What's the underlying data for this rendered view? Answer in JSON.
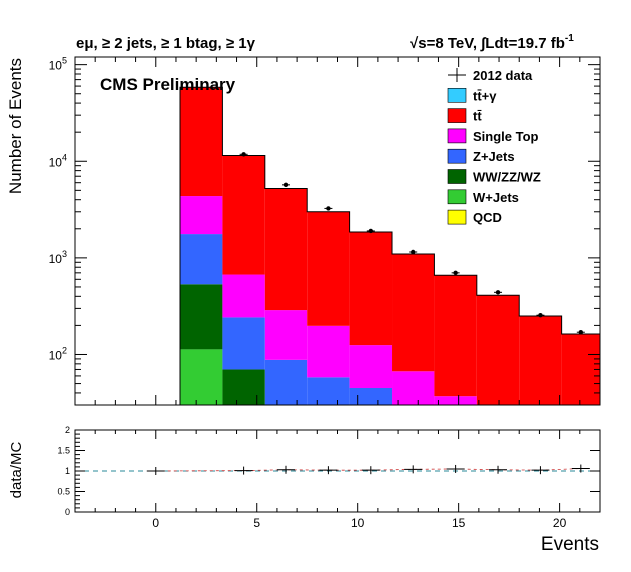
{
  "chart_data": [
    {
      "type": "bar",
      "stacked": true,
      "log_y": true,
      "title_left": "eμ, ≥ 2 jets, ≥ 1 btag, ≥ 1γ",
      "title_right": "√s=8 TeV, ∫Ldt=19.7 fb",
      "title_right_sup": "-1",
      "watermark": "CMS Preliminary",
      "ylabel": "Number of Events",
      "ylim": [
        30,
        120000
      ],
      "y_ticks": [
        {
          "value": 100,
          "base": "10",
          "exp": "2"
        },
        {
          "value": 1000,
          "base": "10",
          "exp": "3"
        },
        {
          "value": 10000,
          "base": "10",
          "exp": "4"
        },
        {
          "value": 100000,
          "base": "10",
          "exp": "5"
        }
      ],
      "xlim": [
        -4,
        22
      ],
      "bins": [
        [
          1.2,
          3.3
        ],
        [
          3.3,
          5.4
        ],
        [
          5.4,
          7.5
        ],
        [
          7.5,
          9.6
        ],
        [
          9.6,
          11.7
        ],
        [
          11.7,
          13.8
        ],
        [
          13.8,
          15.9
        ],
        [
          15.9,
          18.0
        ],
        [
          18.0,
          20.1
        ],
        [
          20.1,
          22.0
        ]
      ],
      "series": [
        {
          "name": "W+Jets",
          "color": "#33cc33",
          "values": [
            113,
            0,
            0,
            0,
            0,
            0,
            0,
            0,
            0,
            0
          ]
        },
        {
          "name": "WW/ZZ/WZ",
          "color": "#006400",
          "values": [
            420,
            70,
            0,
            0,
            0,
            0,
            0,
            0,
            0,
            0
          ]
        },
        {
          "name": "Z+Jets",
          "color": "#3366ff",
          "values": [
            1230,
            172,
            88,
            58,
            45,
            0,
            0,
            0,
            0,
            0
          ]
        },
        {
          "name": "Single Top",
          "color": "#ff00ff",
          "values": [
            2600,
            430,
            200,
            140,
            80,
            67,
            37,
            0,
            0,
            0
          ]
        },
        {
          "name": "tt̄",
          "color": "#ff0000",
          "values": [
            54000,
            10800,
            4940,
            2800,
            1725,
            1030,
            623,
            410,
            250,
            163
          ]
        },
        {
          "name": "tt̄+γ",
          "color": "#33ccff",
          "values": [
            0,
            0,
            0,
            0,
            0,
            0,
            0,
            0,
            0,
            0
          ]
        },
        {
          "name": "QCD",
          "color": "#ffff00",
          "values": [
            0,
            0,
            0,
            0,
            0,
            0,
            0,
            0,
            0,
            0
          ]
        }
      ],
      "data_points": {
        "name": "2012 data",
        "x": [
          4.35,
          6.45,
          8.55,
          10.65,
          12.75,
          14.85,
          16.95,
          19.05,
          21.05
        ],
        "y": [
          11800,
          5700,
          3250,
          1900,
          1150,
          700,
          440,
          255,
          170
        ]
      },
      "legend_order": [
        "2012 data",
        "tt̄+γ",
        "tt̄",
        "Single Top",
        "Z+Jets",
        "WW/ZZ/WZ",
        "W+Jets",
        "QCD"
      ],
      "legend_position": "top-right"
    },
    {
      "type": "line",
      "ylabel": "data/MC",
      "xlabel": "Events",
      "ylim": [
        0,
        2
      ],
      "y_ticks": [
        "0",
        "0.5",
        "1",
        "1.5",
        "2"
      ],
      "x_ticks": [
        "0",
        "5",
        "10",
        "15",
        "20"
      ],
      "reference_line": 1,
      "x": [
        0.0,
        4.35,
        6.45,
        8.55,
        10.65,
        12.75,
        14.85,
        16.95,
        19.05,
        21.05
      ],
      "y": [
        1.0,
        1.01,
        1.03,
        1.02,
        1.02,
        1.04,
        1.05,
        1.03,
        1.02,
        1.06
      ]
    }
  ]
}
